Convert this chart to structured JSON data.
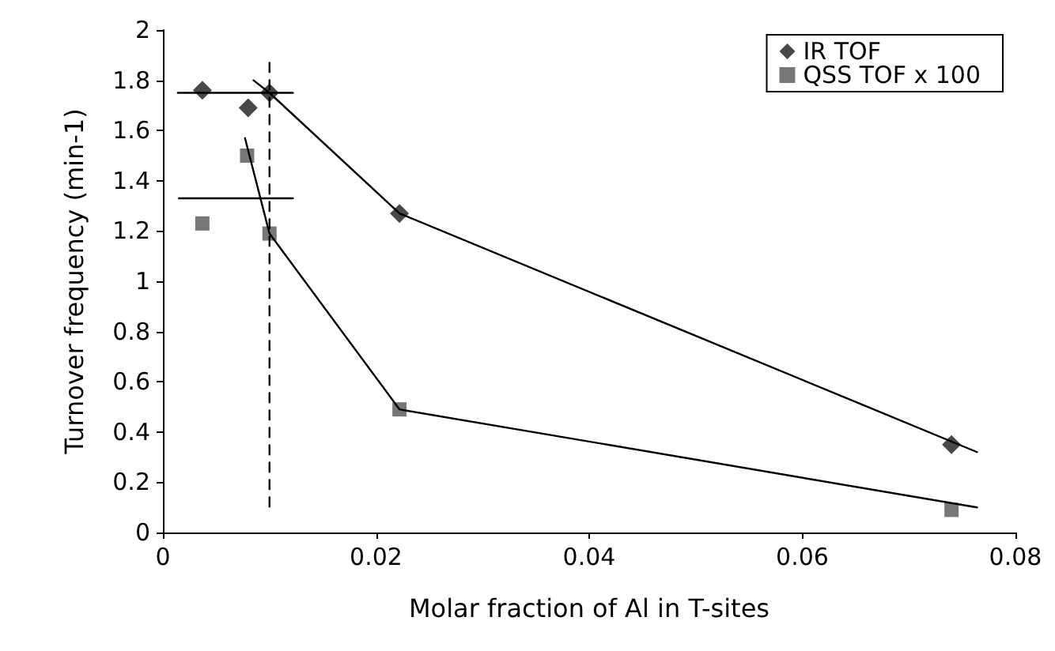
{
  "chart_data": {
    "type": "scatter",
    "xlabel": "Molar fraction of Al in T-sites",
    "ylabel": "Turnover frequency (min-1)",
    "xlim": [
      0,
      0.08
    ],
    "xticks": [
      0,
      0.02,
      0.04,
      0.06,
      0.08
    ],
    "ylim": [
      0,
      2
    ],
    "yticks": [
      0,
      0.2,
      0.4,
      0.6,
      0.8,
      1,
      1.2,
      1.4,
      1.6,
      1.8,
      2
    ],
    "grid": false,
    "legend": "top right",
    "series": [
      {
        "name": "IR TOF",
        "marker": "diamond",
        "color": "#1a1a1a",
        "x": [
          0.0037,
          0.008,
          0.01,
          0.0222,
          0.074
        ],
        "values": [
          1.76,
          1.69,
          1.75,
          1.27,
          0.35
        ]
      },
      {
        "name": "QSS TOF x 100",
        "marker": "square",
        "color": "#555555",
        "x": [
          0.0037,
          0.0079,
          0.01,
          0.0222,
          0.074
        ],
        "values": [
          1.23,
          1.5,
          1.19,
          0.49,
          0.09
        ]
      },
      {
        "type": "line",
        "marker": "none",
        "line_style": "solid",
        "color": "#000000",
        "x": [
          0.0085,
          0.01,
          0.0222,
          0.0764
        ],
        "values": [
          1.8,
          1.75,
          1.27,
          0.32
        ]
      },
      {
        "type": "line",
        "marker": "none",
        "line_style": "solid",
        "color": "#000000",
        "x": [
          0.0077,
          0.01,
          0.0222,
          0.0764
        ],
        "values": [
          1.57,
          1.19,
          0.49,
          0.1
        ]
      },
      {
        "type": "line",
        "marker": "none",
        "line_style": "solid",
        "color": "#000000",
        "x": [
          0.0014,
          0.0122
        ],
        "values": [
          1.75,
          1.75
        ]
      },
      {
        "type": "line",
        "marker": "none",
        "line_style": "solid",
        "color": "#000000",
        "x": [
          0.0015,
          0.0122
        ],
        "values": [
          1.33,
          1.33
        ]
      },
      {
        "type": "line",
        "marker": "none",
        "line_style": "dashed",
        "color": "#000000",
        "x": [
          0.01,
          0.01
        ],
        "values": [
          1.87,
          0.1
        ]
      }
    ]
  }
}
